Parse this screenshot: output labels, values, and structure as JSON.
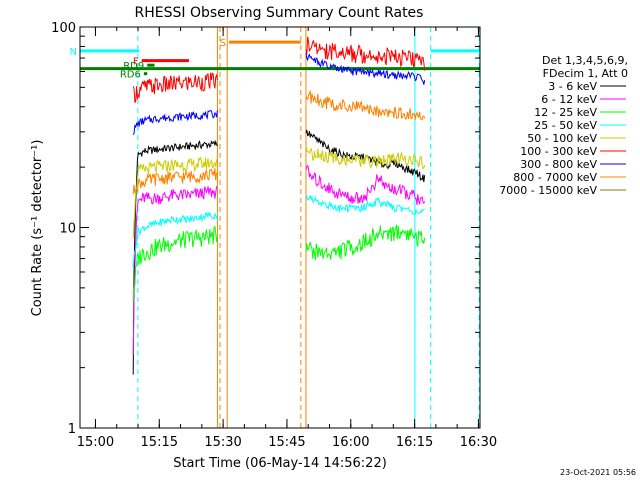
{
  "chart_data": {
    "type": "line",
    "title": "RHESSI Observing Summary Count Rates",
    "xlabel": "Start Time (06-May-14 14:56:22)",
    "ylabel": "Count Rate (s⁻¹ detector⁻¹)",
    "x_unit": "minutes after 14:56:22",
    "xlim": [
      0,
      94
    ],
    "ylim": [
      1,
      100
    ],
    "yscale": "log",
    "x_ticks": [
      {
        "x": 3.63,
        "label": "15:00"
      },
      {
        "x": 18.63,
        "label": "15:15"
      },
      {
        "x": 33.63,
        "label": "15:30"
      },
      {
        "x": 48.63,
        "label": "15:45"
      },
      {
        "x": 63.63,
        "label": "16:00"
      },
      {
        "x": 78.63,
        "label": "16:15"
      },
      {
        "x": 93.63,
        "label": "16:30"
      }
    ],
    "y_ticks": [
      {
        "y": 1,
        "label": "1"
      },
      {
        "y": 10,
        "label": "10"
      },
      {
        "y": 100,
        "label": "100"
      }
    ],
    "legend": {
      "placement": "right",
      "header": [
        "Det 1,3,4,5,6,9,",
        "FDecim 1, Att 0"
      ]
    },
    "series": [
      {
        "name": "3 - 6 keV",
        "color": "#000000",
        "x": [
          12.5,
          13.6,
          15,
          18,
          22,
          26,
          30,
          32.3,
          53.1,
          54,
          56,
          58,
          60,
          62,
          64,
          66,
          68,
          70,
          72,
          74,
          76,
          78,
          79,
          80,
          81
        ],
        "y": [
          1.9,
          23,
          24,
          24.5,
          25,
          25.5,
          26,
          26,
          30,
          29,
          27,
          25,
          24,
          23,
          22.5,
          22.5,
          22,
          21,
          20.5,
          21,
          20,
          19,
          19,
          18,
          17.5
        ]
      },
      {
        "name": "6 - 12 keV",
        "color": "#ff00ff",
        "x": [
          12.5,
          13.6,
          15,
          18,
          22,
          26,
          30,
          32.3,
          53.1,
          54,
          56,
          58,
          60,
          62,
          64,
          66,
          68,
          70,
          72,
          74,
          76,
          78,
          79,
          80,
          81
        ],
        "y": [
          2.5,
          13.5,
          14,
          14,
          14.5,
          14.5,
          15,
          15,
          20,
          18,
          17,
          16,
          15,
          14.5,
          14,
          14,
          15,
          17.5,
          16,
          15.5,
          15,
          14.5,
          14,
          13.5,
          13
        ]
      },
      {
        "name": "12 - 25 keV",
        "color": "#00ff00",
        "x": [
          12.5,
          13.6,
          15,
          18,
          22,
          26,
          30,
          32.3,
          53.1,
          54,
          56,
          58,
          60,
          62,
          64,
          66,
          68,
          70,
          72,
          74,
          76,
          78,
          79,
          80,
          81
        ],
        "y": [
          4.5,
          7,
          7.5,
          8,
          8.5,
          8.8,
          9,
          9.2,
          8,
          7.8,
          7.5,
          7.5,
          7.5,
          7.8,
          8,
          8.3,
          8.8,
          9.2,
          9.5,
          9.5,
          9.5,
          9.3,
          9,
          8.8,
          8.5
        ]
      },
      {
        "name": "25 - 50 keV",
        "color": "#00ffff",
        "x": [
          12.5,
          13.6,
          15,
          18,
          22,
          26,
          30,
          32.3,
          53.1,
          54,
          56,
          58,
          60,
          62,
          64,
          66,
          68,
          70,
          72,
          74,
          76,
          78,
          79,
          80,
          81
        ],
        "y": [
          6.5,
          9.5,
          10,
          10.5,
          11,
          11,
          11.5,
          11.5,
          14.5,
          14,
          13.5,
          13,
          12.5,
          12.5,
          12.5,
          12.5,
          13,
          13.5,
          13,
          12.5,
          12.5,
          12,
          12,
          12,
          11.8
        ]
      },
      {
        "name": "50 - 100 keV",
        "color": "#cccc00",
        "x": [
          12.5,
          13.6,
          15,
          18,
          22,
          26,
          30,
          32.3,
          53.1,
          54,
          56,
          58,
          60,
          62,
          64,
          66,
          68,
          70,
          72,
          74,
          76,
          78,
          79,
          80,
          81
        ],
        "y": [
          9.5,
          19,
          19.5,
          20,
          20.5,
          20.5,
          21,
          21,
          24.5,
          23.5,
          23,
          22.5,
          22,
          22,
          21.5,
          21.5,
          21.5,
          21.5,
          21.5,
          22,
          22,
          22,
          21.5,
          21,
          20.5
        ]
      },
      {
        "name": "100 - 300 keV",
        "color": "#ff0000",
        "x": [
          12.5,
          13.6,
          15,
          18,
          22,
          26,
          30,
          32.3,
          53.1,
          54,
          56,
          58,
          60,
          62,
          64,
          66,
          68,
          70,
          72,
          74,
          76,
          78,
          79,
          80,
          81
        ],
        "y": [
          46,
          48,
          50,
          51,
          52,
          53,
          53.5,
          54,
          82,
          80,
          78,
          77,
          76,
          75,
          74,
          73.5,
          73,
          72.5,
          72,
          71.5,
          70,
          69,
          68,
          67,
          66
        ]
      },
      {
        "name": "300 - 800 keV",
        "color": "#0000ff",
        "x": [
          12.5,
          13.6,
          15,
          18,
          22,
          26,
          30,
          32.3,
          53.1,
          54,
          56,
          58,
          60,
          62,
          64,
          66,
          68,
          70,
          72,
          74,
          76,
          78,
          79,
          80,
          81
        ],
        "y": [
          30,
          33,
          34,
          35,
          35.5,
          36,
          36.5,
          37,
          72,
          70,
          67,
          64,
          62,
          61,
          60,
          59.5,
          59,
          58.5,
          58,
          57.5,
          57,
          57,
          56.5,
          55,
          53
        ]
      },
      {
        "name": "800 - 7000 keV",
        "color": "#ff8000",
        "x": [
          12.5,
          13.6,
          15,
          18,
          22,
          26,
          30,
          32.3,
          53.1,
          54,
          56,
          58,
          60,
          62,
          64,
          66,
          68,
          70,
          72,
          74,
          76,
          78,
          79,
          80,
          81
        ],
        "y": [
          15,
          16.5,
          17,
          17.5,
          17.8,
          18,
          18.3,
          18.5,
          46,
          45,
          43.5,
          42,
          41,
          40.5,
          40,
          39.5,
          39,
          38.5,
          38,
          37.5,
          37,
          36.5,
          36,
          35.5,
          35
        ]
      },
      {
        "name": "7000 - 15000 keV",
        "color": "#808000",
        "x": [],
        "y": []
      }
    ],
    "flags": [
      {
        "label": "N",
        "color": "#00ffff",
        "x": [
          [
            0,
            13.9
          ],
          [
            82.4,
            94
          ]
        ],
        "y": 76
      },
      {
        "label": "F",
        "color": "#ff0000",
        "x": [
          [
            14.5,
            25.6
          ]
        ],
        "y": 68
      },
      {
        "label": "RD9",
        "color": "#008000",
        "x": [
          [
            15.8,
            17.5
          ]
        ],
        "y": 64.5
      },
      {
        "label": "RD6",
        "color": "#008000",
        "x": [
          [
            15,
            15.8
          ]
        ],
        "y": 58.5
      },
      {
        "label": "S",
        "color": "#ff8000",
        "x": [
          [
            35,
            51.9
          ]
        ],
        "y": 84
      },
      {
        "label": "",
        "color": "#008000",
        "x": [
          [
            0,
            94
          ]
        ],
        "y": 62
      }
    ],
    "vlines": [
      {
        "x": 0,
        "color": "#00ffff",
        "style": "solid"
      },
      {
        "x": 13.6,
        "color": "#00ffff",
        "style": "dashed"
      },
      {
        "x": 32.3,
        "color": "#ff8000",
        "style": "solid"
      },
      {
        "x": 32.9,
        "color": "#ff8000",
        "style": "dashed"
      },
      {
        "x": 34.6,
        "color": "#ff8000",
        "style": "solid"
      },
      {
        "x": 51.9,
        "color": "#ff8000",
        "style": "dashed"
      },
      {
        "x": 53.1,
        "color": "#ff8000",
        "style": "solid"
      },
      {
        "x": 78.7,
        "color": "#00ffff",
        "style": "solid"
      },
      {
        "x": 82.4,
        "color": "#00ffff",
        "style": "dashed"
      },
      {
        "x": 93.8,
        "color": "#00ffff",
        "style": "dashed"
      }
    ],
    "footer_timestamp": "23-Oct-2021 05:56"
  }
}
